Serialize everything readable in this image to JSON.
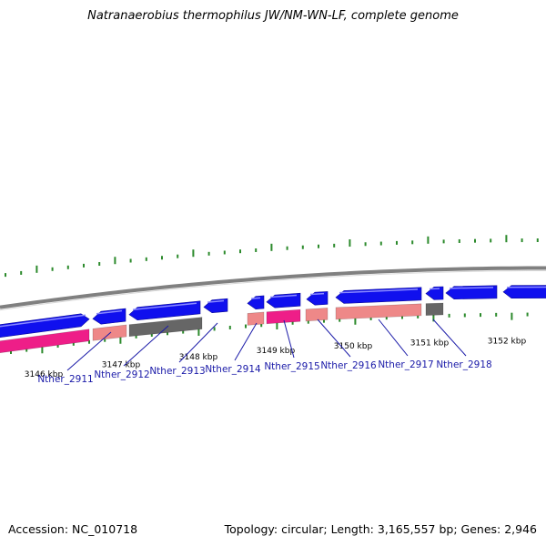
{
  "title": "Natranaerobius thermophilus JW/NM-WN-LF, complete genome",
  "accession_text": "Accession: NC_010718",
  "summary_text": "Topology: circular; Length: 3,165,557 bp; Genes: 2,946",
  "colors": {
    "forward_cds": "#1010ee",
    "reverse_pink": "#ee1e88",
    "reverse_salmon": "#ee8888",
    "reverse_grey": "#666666",
    "backbone": "#808080",
    "ticks": "#2c8a2c",
    "gene_label": "#1a1aa8",
    "kbp_label": "#000000"
  },
  "ruler": {
    "labels": [
      "3146 kbp",
      "3147 kbp",
      "3148 kbp",
      "3149 kbp",
      "3150 kbp",
      "3151 kbp",
      "3152 kbp"
    ]
  },
  "genes": [
    {
      "locus": "Nther_2911"
    },
    {
      "locus": "Nther_2912"
    },
    {
      "locus": "Nther_2913"
    },
    {
      "locus": "Nther_2914"
    },
    {
      "locus": "Nther_2915"
    },
    {
      "locus": "Nther_2916"
    },
    {
      "locus": "Nther_2917"
    },
    {
      "locus": "Nther_2918"
    }
  ]
}
